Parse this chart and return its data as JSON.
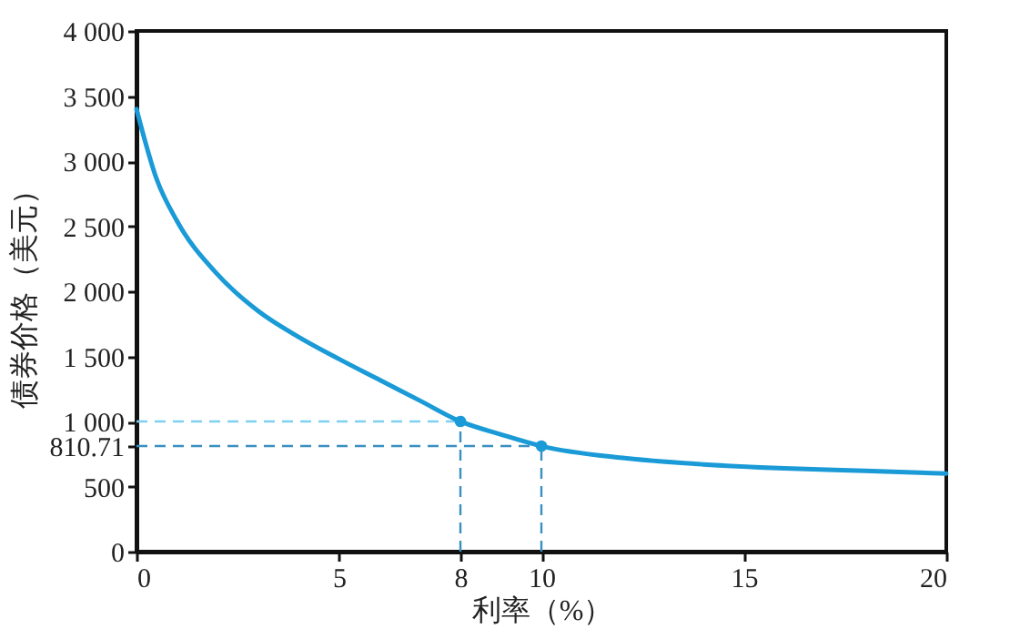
{
  "chart_data": {
    "type": "line",
    "xlabel": "利率（%）",
    "ylabel": "债券价格（美元）",
    "xlim": [
      0,
      20
    ],
    "xticks": [
      0,
      5,
      8,
      10,
      15,
      20
    ],
    "ylim": [
      0,
      4000
    ],
    "yticks": [
      0,
      500,
      {
        "value": 810.71,
        "label": "810.71"
      },
      {
        "value": 1000,
        "label": "1 000"
      },
      {
        "value": 1500,
        "label": "1 500"
      },
      {
        "value": 2000,
        "label": "2 000"
      },
      {
        "value": 2500,
        "label": "2 500"
      },
      {
        "value": 3000,
        "label": "3 000"
      },
      {
        "value": 3500,
        "label": "3 500"
      },
      {
        "value": 4000,
        "label": "4 000"
      }
    ],
    "line_style": "solid",
    "series": [
      {
        "color": "#1a9ad6",
        "marker": "none",
        "x": [
          0,
          0.5,
          1,
          2,
          3,
          4,
          5,
          6,
          7,
          8,
          9,
          10,
          12,
          14,
          16,
          18,
          20
        ],
        "values": [
          3400,
          2860,
          2540,
          2130,
          1850,
          1650,
          1480,
          1320,
          1160,
          1000,
          900,
          810.71,
          720,
          670,
          640,
          620,
          600
        ]
      },
      {
        "type": "scatter",
        "color": "#1a9ad6",
        "marker": "circle",
        "x": [
          8,
          10
        ],
        "values": [
          1000,
          810.71
        ]
      }
    ],
    "ref_lines": [
      {
        "axis": "y",
        "value": 1000,
        "color": "#7fd0ef",
        "line_style": "dashed"
      },
      {
        "axis": "y",
        "value": 810.71,
        "color": "#3a8fc0",
        "line_style": "dashed"
      },
      {
        "axis": "x",
        "value": 8,
        "color": "#3a8fc0",
        "line_style": "dashed"
      },
      {
        "axis": "x",
        "value": 10,
        "color": "#3a8fc0",
        "line_style": "dashed"
      }
    ]
  }
}
